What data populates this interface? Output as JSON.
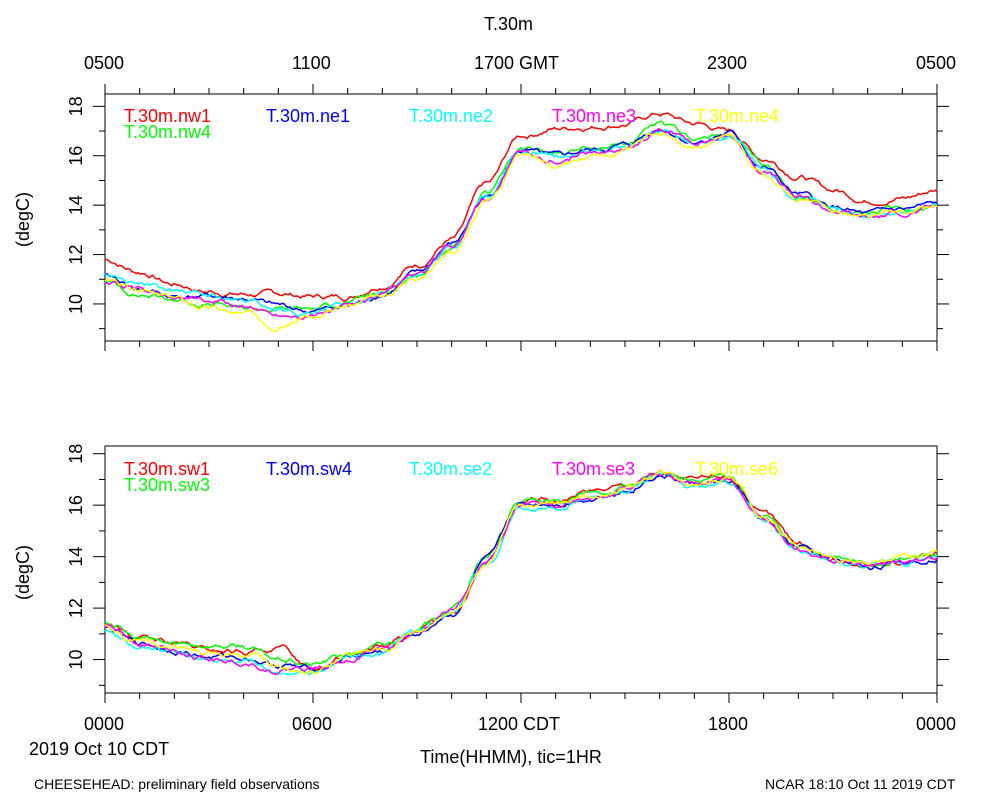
{
  "chart_data": {
    "type": "line",
    "title": "T.30m",
    "top_axis": {
      "tick_labels": [
        "0500",
        "1100",
        "1700 GMT",
        "2300",
        "0500"
      ],
      "tick_hours": [
        0,
        6,
        12,
        18,
        24
      ]
    },
    "bottom_axis": {
      "tick_labels": [
        "0000",
        "0600",
        "1200 CDT",
        "1800",
        "0000"
      ],
      "tick_hours": [
        0,
        6,
        12,
        18,
        24
      ],
      "xlabel": "Time(HHMM), tic=1HR",
      "date_label": "2019 Oct 10 CDT"
    },
    "xlim_hours": [
      0,
      24
    ],
    "footer_left": "CHEESEHEAD: preliminary field observations",
    "footer_right": "NCAR 18:10 Oct 11 2019 CDT",
    "knots_hours": [
      0,
      1,
      2,
      3,
      4,
      5,
      6,
      7,
      8,
      9,
      10,
      11,
      12,
      13,
      14,
      15,
      16,
      17,
      18,
      19,
      20,
      21,
      22,
      23,
      24
    ],
    "panels": [
      {
        "ylabel": "(degC)",
        "ylim": [
          8.5,
          18.5
        ],
        "yticks": [
          10,
          12,
          14,
          16,
          18
        ],
        "series": [
          {
            "name": "T.30m.nw1",
            "color": "#ff0000",
            "values": [
              11.8,
              11.3,
              10.8,
              10.5,
              10.4,
              10.4,
              10.3,
              10.3,
              10.8,
              11.6,
              12.6,
              14.8,
              16.8,
              17.1,
              17.2,
              17.3,
              17.7,
              17.3,
              17.0,
              15.9,
              15.2,
              14.6,
              14.2,
              14.3,
              14.6
            ]
          },
          {
            "name": "T.30m.nw4",
            "color": "#00ff00",
            "values": [
              10.9,
              10.4,
              10.2,
              10.0,
              9.8,
              9.8,
              9.8,
              10.1,
              10.4,
              11.2,
              12.3,
              14.4,
              16.3,
              16.1,
              16.3,
              16.5,
              17.2,
              16.7,
              16.8,
              15.6,
              14.4,
              13.9,
              13.7,
              13.8,
              14.0
            ]
          },
          {
            "name": "T.30m.ne1",
            "color": "#0000ff",
            "values": [
              11.1,
              10.6,
              10.3,
              10.3,
              10.2,
              9.9,
              9.7,
              9.9,
              10.4,
              11.2,
              12.4,
              14.3,
              16.2,
              15.9,
              16.2,
              16.4,
              17.1,
              16.6,
              16.9,
              15.5,
              14.4,
              13.9,
              13.6,
              13.8,
              14.0
            ]
          },
          {
            "name": "T.30m.ne2",
            "color": "#00ffff",
            "values": [
              11.2,
              10.8,
              10.5,
              10.3,
              10.1,
              9.8,
              9.6,
              9.9,
              10.5,
              11.2,
              12.3,
              14.2,
              16.1,
              15.9,
              16.1,
              16.3,
              17.0,
              16.6,
              16.8,
              15.4,
              14.3,
              13.8,
              13.6,
              13.8,
              14.0
            ]
          },
          {
            "name": "T.30m.ne3",
            "color": "#ff00ff",
            "values": [
              10.9,
              10.6,
              10.3,
              10.1,
              9.9,
              9.6,
              9.6,
              9.9,
              10.3,
              11.1,
              12.2,
              14.2,
              16.1,
              15.8,
              16.1,
              16.3,
              17.0,
              16.6,
              16.8,
              15.4,
              14.3,
              13.8,
              13.5,
              13.7,
              13.9
            ]
          },
          {
            "name": "T.30m.ne4",
            "color": "#ffff00",
            "values": [
              10.9,
              10.5,
              10.2,
              9.9,
              9.6,
              9.2,
              9.5,
              9.9,
              10.2,
              11.0,
              12.1,
              14.1,
              16.0,
              15.7,
              16.0,
              16.2,
              16.9,
              16.5,
              16.7,
              15.3,
              14.2,
              13.8,
              13.5,
              13.7,
              13.9
            ]
          }
        ]
      },
      {
        "ylabel": "(degC)",
        "ylim": [
          8.7,
          18.3
        ],
        "yticks": [
          10,
          12,
          14,
          16,
          18
        ],
        "series": [
          {
            "name": "T.30m.sw1",
            "color": "#ff0000",
            "values": [
              11.4,
              10.8,
              10.6,
              10.3,
              10.3,
              10.4,
              9.7,
              10.2,
              10.5,
              11.0,
              11.8,
              13.8,
              16.2,
              16.1,
              16.5,
              16.7,
              17.3,
              16.9,
              17.1,
              15.6,
              14.5,
              13.9,
              13.6,
              13.8,
              14.2
            ]
          },
          {
            "name": "T.30m.sw3",
            "color": "#00ff00",
            "values": [
              11.5,
              10.8,
              10.6,
              10.6,
              10.5,
              10.0,
              9.8,
              10.2,
              10.5,
              11.2,
              12.0,
              13.9,
              16.2,
              16.0,
              16.4,
              16.7,
              17.2,
              16.9,
              17.2,
              15.5,
              14.4,
              13.9,
              13.7,
              13.9,
              14.1
            ]
          },
          {
            "name": "T.30m.sw4",
            "color": "#0000ff",
            "values": [
              11.2,
              10.6,
              10.4,
              10.1,
              10.1,
              9.8,
              9.6,
              10.1,
              10.3,
              11.0,
              11.8,
              13.8,
              16.0,
              16.1,
              16.3,
              16.6,
              17.2,
              16.8,
              16.9,
              15.4,
              14.3,
              13.8,
              13.6,
              13.8,
              14.0
            ]
          },
          {
            "name": "T.30m.se2",
            "color": "#00ffff",
            "values": [
              11.1,
              10.5,
              10.3,
              9.9,
              10.0,
              9.5,
              9.6,
              10.1,
              10.3,
              11.1,
              11.9,
              13.7,
              15.9,
              16.0,
              16.3,
              16.5,
              17.2,
              16.7,
              16.9,
              15.4,
              14.2,
              13.7,
              13.6,
              13.8,
              14.0
            ]
          },
          {
            "name": "T.30m.se3",
            "color": "#ff00ff",
            "values": [
              11.3,
              10.7,
              10.4,
              10.0,
              9.9,
              9.6,
              9.7,
              10.1,
              10.4,
              11.0,
              11.9,
              13.8,
              16.0,
              16.0,
              16.3,
              16.6,
              17.3,
              16.8,
              17.0,
              15.5,
              14.3,
              13.8,
              13.6,
              13.8,
              14.0
            ]
          },
          {
            "name": "T.30m.se6",
            "color": "#ffff00",
            "values": [
              11.3,
              10.7,
              10.5,
              10.2,
              10.2,
              9.7,
              9.5,
              10.1,
              10.4,
              11.1,
              11.9,
              13.8,
              16.1,
              16.0,
              16.4,
              16.6,
              17.3,
              16.9,
              17.1,
              15.5,
              14.4,
              13.9,
              13.7,
              13.9,
              14.1
            ]
          }
        ]
      }
    ]
  }
}
